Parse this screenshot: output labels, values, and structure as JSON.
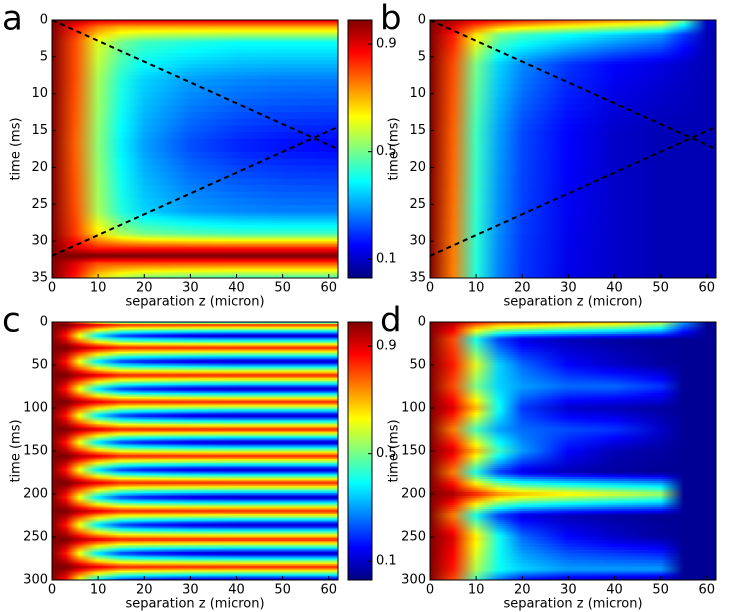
{
  "chart_data": [
    {
      "type": "heatmap",
      "letter": "a",
      "xlabel": "separation z (micron)",
      "ylabel": "time (ms)",
      "xlim": [
        0,
        62
      ],
      "ylim": [
        0,
        35
      ],
      "xticks": [
        0,
        10,
        20,
        30,
        40,
        50,
        60
      ],
      "yticks": [
        0,
        5,
        10,
        15,
        20,
        25,
        30,
        35
      ],
      "x": [
        0,
        5,
        10,
        15,
        20,
        30,
        40,
        50,
        60
      ],
      "y": [
        0,
        1,
        3,
        8,
        17,
        26,
        29,
        31,
        32,
        33,
        35
      ],
      "values": [
        [
          1,
          0.95,
          0.9,
          0.9,
          0.9,
          0.9,
          0.9,
          0.9,
          0.9
        ],
        [
          1,
          0.85,
          0.75,
          0.7,
          0.7,
          0.7,
          0.7,
          0.7,
          0.7
        ],
        [
          1,
          0.8,
          0.6,
          0.5,
          0.45,
          0.42,
          0.4,
          0.4,
          0.4
        ],
        [
          1,
          0.8,
          0.55,
          0.42,
          0.35,
          0.3,
          0.28,
          0.27,
          0.27
        ],
        [
          1,
          0.78,
          0.52,
          0.38,
          0.3,
          0.22,
          0.18,
          0.16,
          0.15
        ],
        [
          1,
          0.8,
          0.55,
          0.42,
          0.35,
          0.3,
          0.28,
          0.27,
          0.27
        ],
        [
          1,
          0.82,
          0.65,
          0.55,
          0.5,
          0.47,
          0.45,
          0.45,
          0.45
        ],
        [
          1,
          0.9,
          0.85,
          0.85,
          0.85,
          0.85,
          0.85,
          0.85,
          0.85
        ],
        [
          1,
          1,
          1,
          1,
          1,
          1,
          1,
          1,
          1
        ],
        [
          1,
          0.9,
          0.8,
          0.8,
          0.8,
          0.8,
          0.8,
          0.8,
          0.8
        ],
        [
          1,
          0.85,
          0.65,
          0.55,
          0.5,
          0.47,
          0.45,
          0.45,
          0.45
        ]
      ],
      "lines": [
        {
          "x": [
            0,
            62
          ],
          "y": [
            0,
            17.5
          ]
        },
        {
          "x": [
            0,
            62
          ],
          "y": [
            32,
            14.5
          ]
        }
      ],
      "colorbar": {
        "clim": [
          0.03,
          0.99
        ],
        "ticks": [
          0.1,
          0.5,
          0.9
        ]
      }
    },
    {
      "type": "heatmap",
      "letter": "b",
      "xlabel": "separation z (micron)",
      "ylabel": "time (ms)",
      "xlim": [
        0,
        62
      ],
      "ylim": [
        0,
        35
      ],
      "xticks": [
        0,
        10,
        20,
        30,
        40,
        50,
        60
      ],
      "yticks": [
        0,
        5,
        10,
        15,
        20,
        25,
        30,
        35
      ],
      "x": [
        0,
        5,
        10,
        15,
        20,
        30,
        40,
        50,
        55,
        60
      ],
      "y": [
        0,
        2,
        6,
        15,
        35
      ],
      "values": [
        [
          1,
          0.95,
          0.9,
          0.88,
          0.85,
          0.8,
          0.75,
          0.7,
          0.5,
          0.1
        ],
        [
          1,
          0.85,
          0.65,
          0.5,
          0.45,
          0.4,
          0.35,
          0.3,
          0.2,
          0.08
        ],
        [
          1,
          0.8,
          0.5,
          0.35,
          0.28,
          0.2,
          0.15,
          0.12,
          0.1,
          0.08
        ],
        [
          1,
          0.78,
          0.45,
          0.3,
          0.22,
          0.15,
          0.1,
          0.08,
          0.08,
          0.08
        ],
        [
          1,
          0.75,
          0.42,
          0.27,
          0.2,
          0.13,
          0.1,
          0.08,
          0.08,
          0.08
        ]
      ],
      "lines": [
        {
          "x": [
            0,
            62
          ],
          "y": [
            0,
            17.5
          ]
        },
        {
          "x": [
            0,
            62
          ],
          "y": [
            32,
            14.5
          ]
        }
      ],
      "clim": [
        0.03,
        0.99
      ]
    },
    {
      "type": "heatmap",
      "letter": "c",
      "xlabel": "separation z (micron)",
      "ylabel": "time (ms)",
      "xlim": [
        0,
        62
      ],
      "ylim": [
        0,
        300
      ],
      "xticks": [
        0,
        10,
        20,
        30,
        40,
        50,
        60
      ],
      "yticks": [
        0,
        50,
        100,
        150,
        200,
        250,
        300
      ],
      "x": [
        0,
        3,
        6,
        10,
        15,
        20,
        30,
        40,
        50,
        60
      ],
      "y": [
        0,
        3,
        16,
        30,
        46,
        62,
        78,
        93,
        109,
        125,
        140,
        156,
        172,
        187,
        204,
        220,
        236,
        253,
        269,
        285,
        300
      ],
      "values": [
        [
          1,
          0.9,
          0.7,
          0.45,
          0.3,
          0.25,
          0.2,
          0.18,
          0.15,
          0.15
        ],
        [
          1,
          1,
          0.95,
          0.9,
          0.85,
          0.85,
          0.85,
          0.85,
          0.85,
          0.85
        ],
        [
          1,
          0.85,
          0.6,
          0.35,
          0.2,
          0.15,
          0.1,
          0.08,
          0.08,
          0.08
        ],
        [
          1,
          1,
          0.95,
          0.9,
          0.85,
          0.85,
          0.85,
          0.85,
          0.85,
          0.85
        ],
        [
          1,
          0.85,
          0.6,
          0.35,
          0.2,
          0.15,
          0.1,
          0.08,
          0.08,
          0.08
        ],
        [
          1,
          1,
          0.95,
          0.9,
          0.85,
          0.85,
          0.85,
          0.85,
          0.85,
          0.85
        ],
        [
          1,
          0.85,
          0.6,
          0.35,
          0.2,
          0.15,
          0.1,
          0.08,
          0.08,
          0.08
        ],
        [
          1,
          1,
          0.95,
          0.9,
          0.85,
          0.85,
          0.85,
          0.85,
          0.85,
          0.85
        ],
        [
          1,
          0.85,
          0.6,
          0.35,
          0.2,
          0.15,
          0.1,
          0.08,
          0.08,
          0.08
        ],
        [
          1,
          1,
          0.95,
          0.9,
          0.85,
          0.85,
          0.85,
          0.85,
          0.85,
          0.85
        ],
        [
          1,
          0.85,
          0.6,
          0.35,
          0.2,
          0.15,
          0.1,
          0.08,
          0.08,
          0.08
        ],
        [
          1,
          1,
          0.95,
          0.9,
          0.85,
          0.85,
          0.85,
          0.85,
          0.85,
          0.85
        ],
        [
          1,
          0.85,
          0.6,
          0.35,
          0.2,
          0.15,
          0.1,
          0.08,
          0.08,
          0.08
        ],
        [
          1,
          1,
          0.95,
          0.9,
          0.85,
          0.85,
          0.85,
          0.85,
          0.85,
          0.85
        ],
        [
          1,
          0.85,
          0.6,
          0.35,
          0.2,
          0.15,
          0.1,
          0.08,
          0.08,
          0.08
        ],
        [
          1,
          1,
          0.95,
          0.9,
          0.85,
          0.85,
          0.85,
          0.85,
          0.85,
          0.85
        ],
        [
          1,
          0.85,
          0.6,
          0.35,
          0.2,
          0.15,
          0.1,
          0.08,
          0.08,
          0.08
        ],
        [
          1,
          1,
          0.95,
          0.9,
          0.85,
          0.85,
          0.85,
          0.85,
          0.85,
          0.85
        ],
        [
          1,
          0.85,
          0.6,
          0.35,
          0.2,
          0.15,
          0.1,
          0.08,
          0.08,
          0.08
        ],
        [
          1,
          1,
          0.95,
          0.9,
          0.85,
          0.85,
          0.85,
          0.85,
          0.85,
          0.85
        ],
        [
          1,
          0.85,
          0.6,
          0.35,
          0.2,
          0.15,
          0.1,
          0.08,
          0.08,
          0.08
        ]
      ],
      "colorbar": {
        "clim": [
          0.03,
          0.99
        ],
        "ticks": [
          0.1,
          0.5,
          0.9
        ]
      }
    },
    {
      "type": "heatmap",
      "letter": "d",
      "xlabel": "separation z (micron)",
      "ylabel": "time (ms)",
      "xlim": [
        0,
        62
      ],
      "ylim": [
        0,
        300
      ],
      "xticks": [
        0,
        10,
        20,
        30,
        40,
        50,
        60
      ],
      "yticks": [
        0,
        50,
        100,
        150,
        200,
        250,
        300
      ],
      "x": [
        0,
        5,
        10,
        15,
        20,
        30,
        40,
        50,
        55,
        60
      ],
      "y": [
        0,
        20,
        50,
        75,
        100,
        125,
        150,
        175,
        200,
        225,
        250,
        288,
        300
      ],
      "values": [
        [
          1,
          0.95,
          0.85,
          0.8,
          0.8,
          0.75,
          0.7,
          0.6,
          0.3,
          0.05
        ],
        [
          1,
          0.8,
          0.4,
          0.2,
          0.12,
          0.08,
          0.06,
          0.05,
          0.05,
          0.05
        ],
        [
          1,
          0.85,
          0.6,
          0.35,
          0.25,
          0.15,
          0.1,
          0.06,
          0.05,
          0.05
        ],
        [
          1,
          0.8,
          0.5,
          0.35,
          0.3,
          0.25,
          0.25,
          0.2,
          0.05,
          0.05
        ],
        [
          1,
          0.9,
          0.7,
          0.4,
          0.2,
          0.1,
          0.08,
          0.06,
          0.05,
          0.05
        ],
        [
          1,
          0.75,
          0.45,
          0.3,
          0.25,
          0.22,
          0.2,
          0.1,
          0.05,
          0.05
        ],
        [
          1,
          0.9,
          0.7,
          0.45,
          0.3,
          0.15,
          0.08,
          0.06,
          0.05,
          0.05
        ],
        [
          1,
          0.75,
          0.4,
          0.2,
          0.12,
          0.08,
          0.06,
          0.05,
          0.05,
          0.05
        ],
        [
          1,
          0.95,
          0.85,
          0.75,
          0.7,
          0.65,
          0.6,
          0.55,
          0.05,
          0.05
        ],
        [
          1,
          0.75,
          0.4,
          0.2,
          0.12,
          0.08,
          0.06,
          0.05,
          0.05,
          0.05
        ],
        [
          1,
          0.9,
          0.65,
          0.4,
          0.25,
          0.15,
          0.1,
          0.06,
          0.05,
          0.05
        ],
        [
          1,
          0.85,
          0.55,
          0.4,
          0.35,
          0.3,
          0.3,
          0.3,
          0.05,
          0.05
        ],
        [
          1,
          0.8,
          0.45,
          0.25,
          0.15,
          0.1,
          0.08,
          0.06,
          0.05,
          0.05
        ]
      ],
      "clim": [
        0.03,
        0.99
      ]
    }
  ]
}
